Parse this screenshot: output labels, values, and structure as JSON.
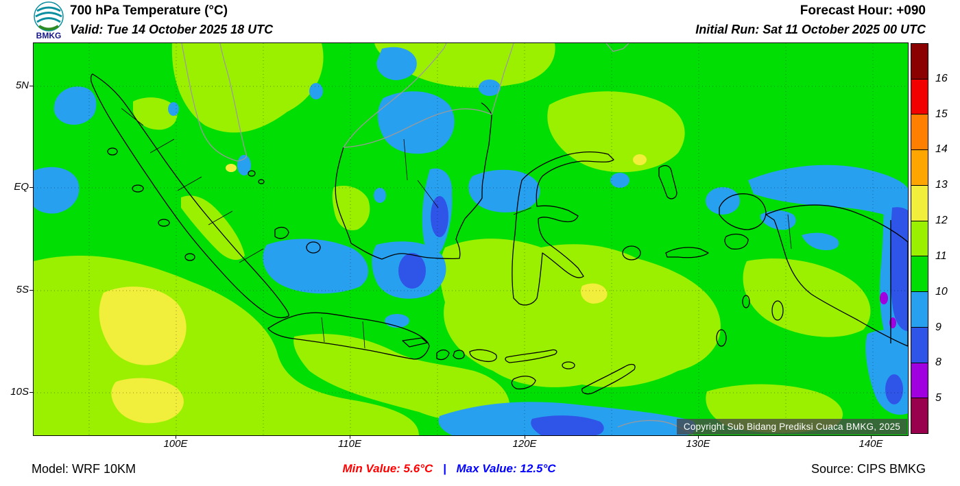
{
  "header": {
    "logo_text": "BMKG",
    "title": "700 hPa Temperature (°C)",
    "valid": "Valid: Tue 14 October 2025 18 UTC",
    "forecast_hour": "Forecast Hour: +090",
    "initial_run": "Initial Run: Sat 11 October 2025 00 UTC"
  },
  "map": {
    "x_ticks": [
      "100E",
      "110E",
      "120E",
      "130E",
      "140E"
    ],
    "y_ticks": [
      "5N",
      "EQ",
      "5S",
      "10S"
    ],
    "copyright": "Copyright Sub Bidang Prediksi Cuaca BMKG, 2025",
    "colors": {
      "green": "#00DE04",
      "light_green": "#9BF000",
      "yellow": "#F2EE3C",
      "blue": "#28A0F0",
      "dark_blue": "#2F55E8",
      "purple": "#A000E0",
      "coastline": "#000000",
      "border_gray": "#9A9A9A"
    }
  },
  "colorbar": {
    "labels": [
      "16",
      "15",
      "14",
      "13",
      "12",
      "11",
      "10",
      "9",
      "8",
      "5"
    ],
    "segments": [
      "#8B0000",
      "#F20000",
      "#FF7F00",
      "#FFA500",
      "#F2EE3C",
      "#9BF000",
      "#00DE04",
      "#28A0F0",
      "#2F55E8",
      "#A000E0",
      "#99004D"
    ]
  },
  "footer": {
    "model": "Model: WRF 10KM",
    "min_value": "Min Value: 5.6°C",
    "separator": "|",
    "max_value": "Max Value: 12.5°C",
    "source": "Source: CIPS BMKG"
  },
  "chart_data": {
    "type": "heatmap",
    "title": "700 hPa Temperature (°C)",
    "x_ticks": [
      "100E",
      "110E",
      "120E",
      "130E",
      "140E"
    ],
    "y_ticks": [
      "5N",
      "EQ",
      "5S",
      "10S"
    ],
    "colorbar_levels": [
      16,
      15,
      14,
      13,
      12,
      11,
      10,
      9,
      8,
      5
    ],
    "min_value_c": 5.6,
    "max_value_c": 12.5,
    "legend_position": "right",
    "dominant_field_value_range": [
      10,
      11
    ]
  }
}
